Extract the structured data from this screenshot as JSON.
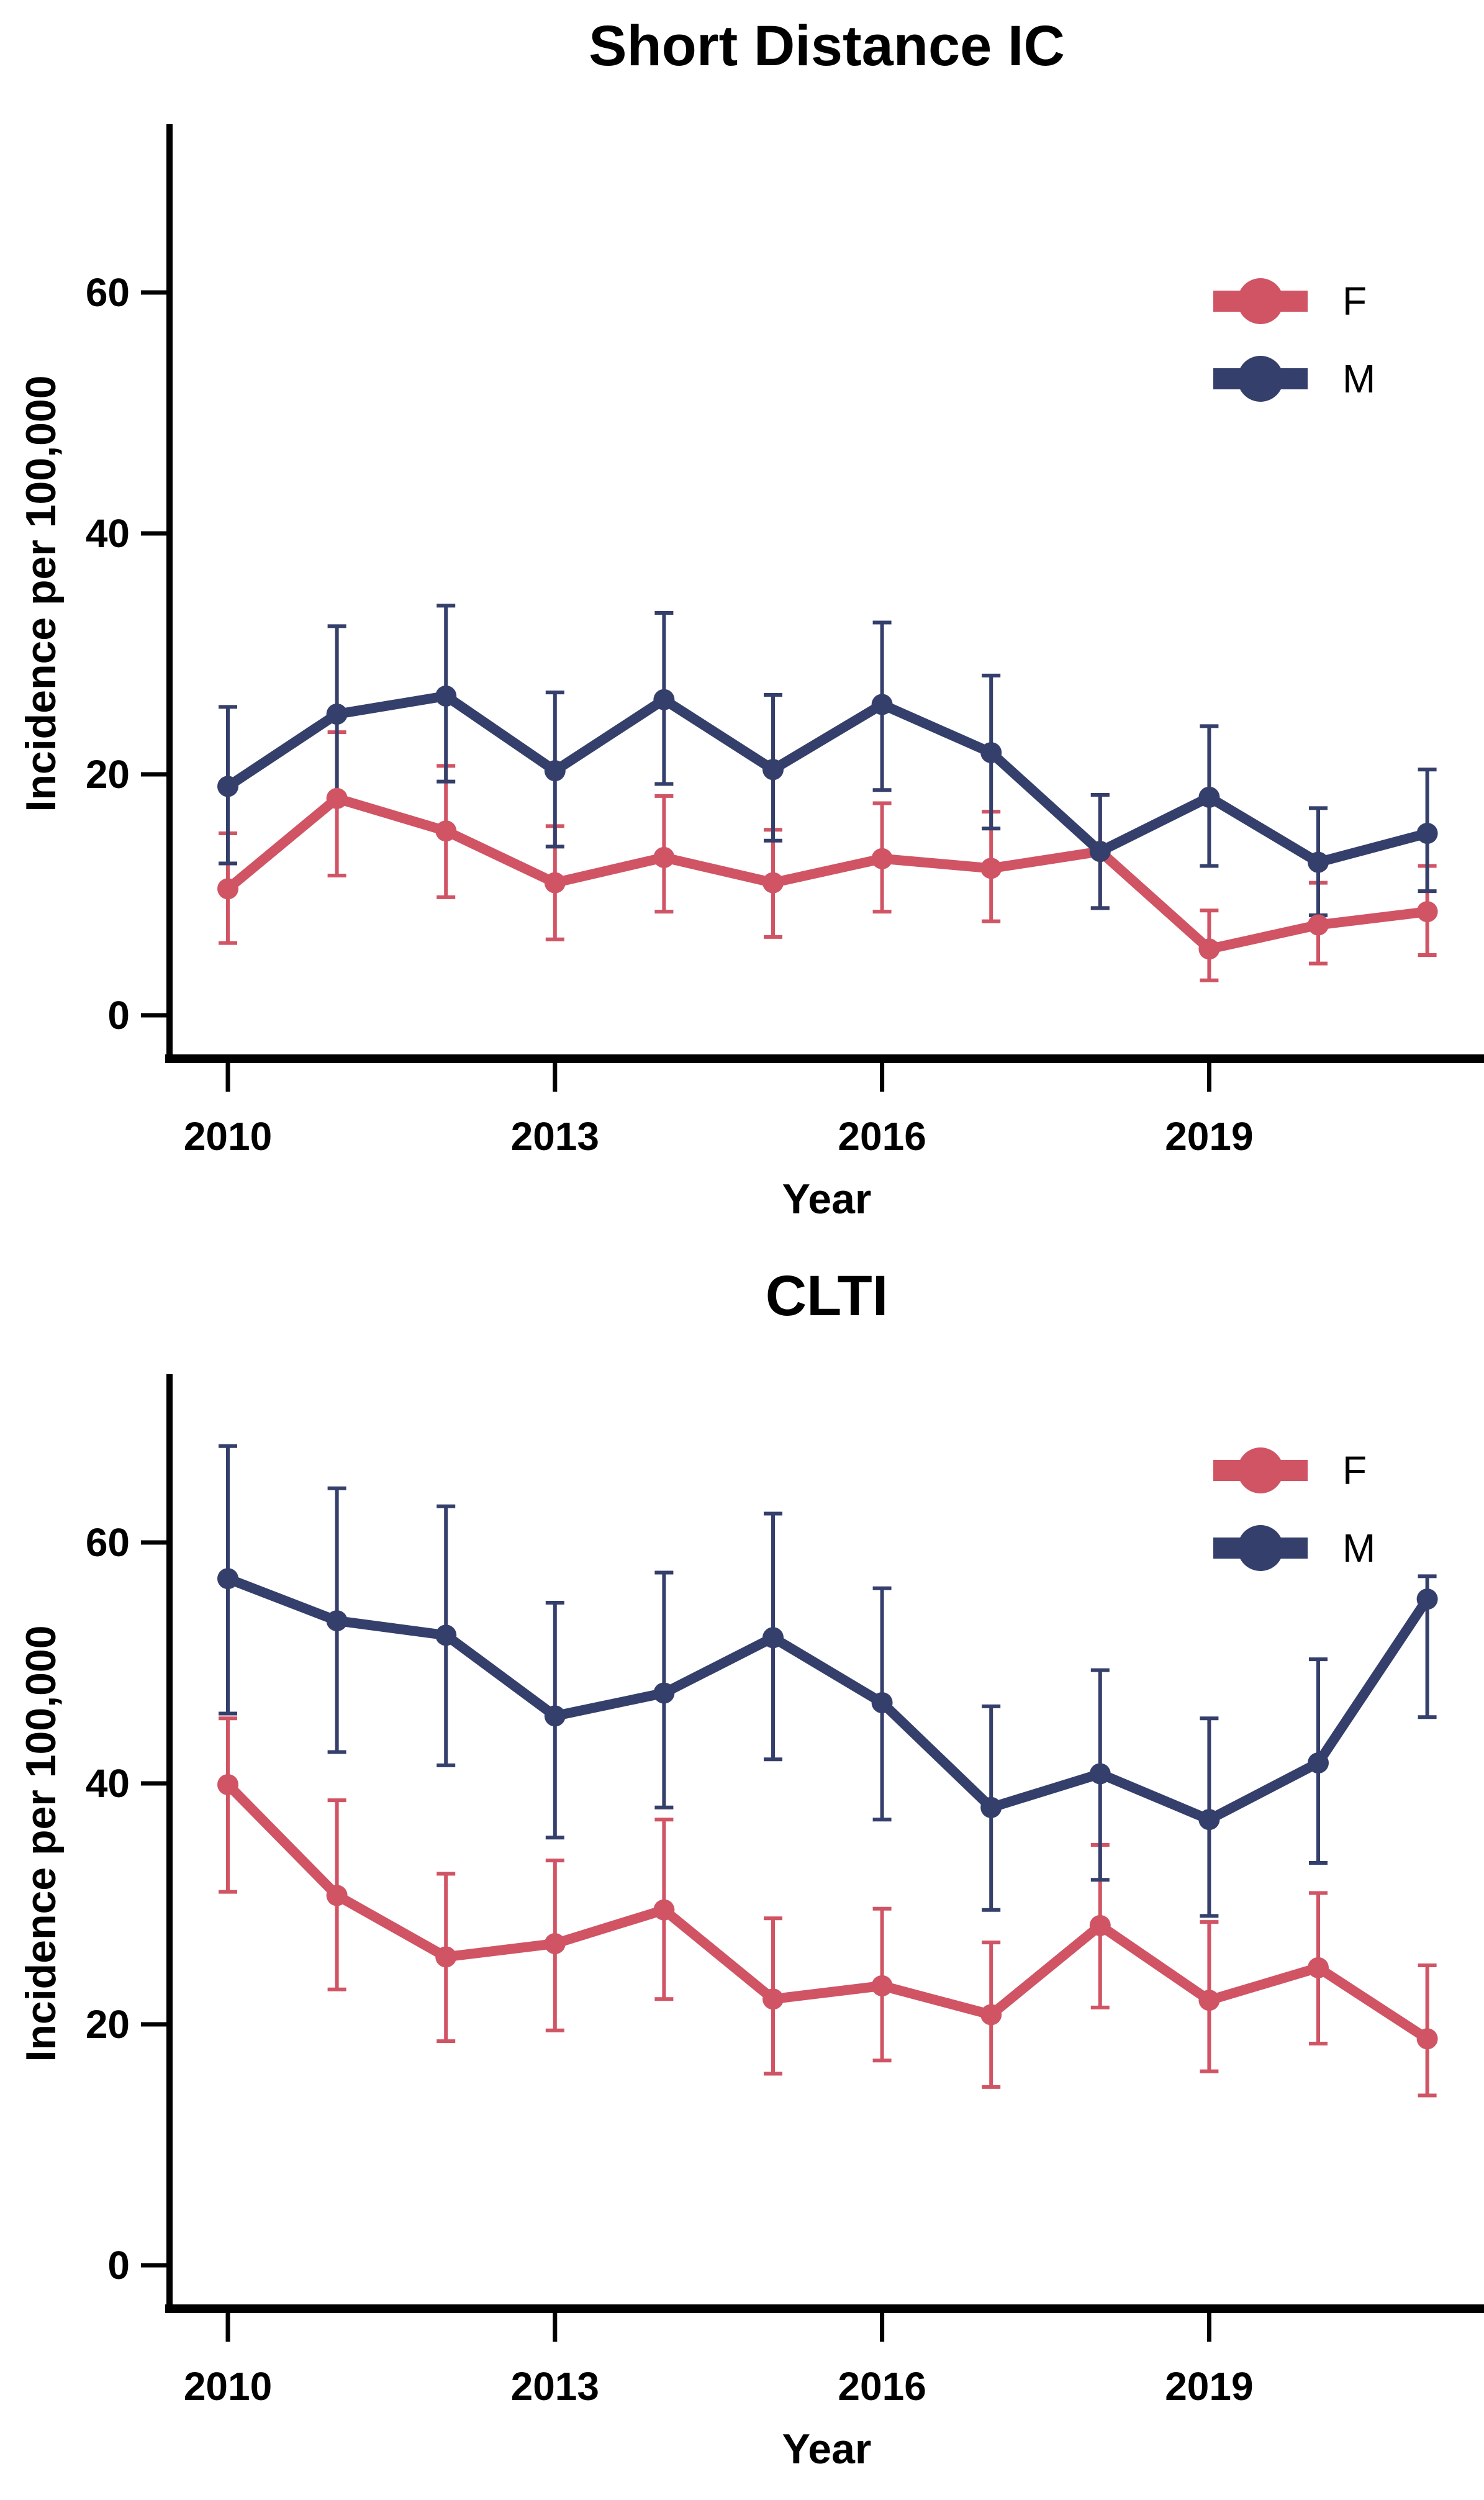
{
  "page": {
    "background": "#ffffff",
    "text_color": "#000000"
  },
  "chart_data": [
    {
      "type": "line",
      "title": "Short Distance IC",
      "xlabel": "Year",
      "ylabel": "Incidence per 100,000",
      "x": [
        2010,
        2011,
        2012,
        2013,
        2014,
        2015,
        2016,
        2017,
        2018,
        2019,
        2020,
        2021
      ],
      "x_ticks": [
        2010,
        2013,
        2016,
        2019
      ],
      "y_ticks": [
        0,
        20,
        40,
        60
      ],
      "xlim": [
        2009.45,
        2021.55
      ],
      "ylim": [
        -3.5,
        74
      ],
      "grid": false,
      "error_bars": true,
      "legend_position": "top-right",
      "series": [
        {
          "name": "F",
          "color": "#d05464",
          "values": [
            10.5,
            18.0,
            15.3,
            11.0,
            13.1,
            11.0,
            13.0,
            12.2,
            13.6,
            5.5,
            7.5,
            8.6
          ],
          "ci_low": [
            6.0,
            11.6,
            9.8,
            6.3,
            8.6,
            6.5,
            8.6,
            7.8,
            8.9,
            2.9,
            4.3,
            5.0
          ],
          "ci_high": [
            15.1,
            23.5,
            20.7,
            15.7,
            18.2,
            15.4,
            17.6,
            16.9,
            18.3,
            8.7,
            11.0,
            12.4
          ]
        },
        {
          "name": "M",
          "color": "#353f6b",
          "values": [
            19.0,
            25.0,
            26.5,
            20.3,
            26.2,
            20.4,
            25.8,
            21.8,
            13.6,
            18.1,
            12.7,
            15.1
          ],
          "ci_low": [
            12.6,
            17.9,
            19.4,
            14.0,
            19.2,
            14.5,
            18.7,
            15.5,
            8.9,
            12.4,
            8.3,
            10.3
          ],
          "ci_high": [
            25.6,
            32.3,
            34.0,
            26.8,
            33.4,
            26.6,
            32.6,
            28.2,
            18.3,
            24.0,
            17.2,
            20.4
          ]
        }
      ]
    },
    {
      "type": "line",
      "title": "CLTI",
      "xlabel": "Year",
      "ylabel": "Incidence per 100,000",
      "x": [
        2010,
        2011,
        2012,
        2013,
        2014,
        2015,
        2016,
        2017,
        2018,
        2019,
        2020,
        2021
      ],
      "x_ticks": [
        2010,
        2013,
        2016,
        2019
      ],
      "y_ticks": [
        0,
        20,
        40,
        60
      ],
      "xlim": [
        2009.45,
        2021.55
      ],
      "ylim": [
        -3.5,
        74
      ],
      "grid": false,
      "error_bars": true,
      "legend_position": "top-right",
      "series": [
        {
          "name": "F",
          "color": "#d05464",
          "values": [
            39.9,
            30.7,
            25.6,
            26.7,
            29.5,
            22.1,
            23.2,
            20.8,
            28.2,
            22.0,
            24.7,
            18.8
          ],
          "ci_low": [
            31.0,
            22.9,
            18.6,
            19.5,
            22.1,
            15.9,
            17.0,
            14.8,
            21.4,
            16.1,
            18.4,
            14.1
          ],
          "ci_high": [
            45.4,
            38.6,
            32.5,
            33.6,
            37.0,
            28.8,
            29.6,
            26.8,
            34.9,
            28.5,
            30.9,
            24.9
          ]
        },
        {
          "name": "M",
          "color": "#353f6b",
          "values": [
            57.0,
            53.5,
            52.3,
            45.6,
            47.5,
            52.1,
            46.7,
            38.0,
            40.8,
            37.0,
            41.7,
            55.3
          ],
          "ci_low": [
            45.8,
            42.6,
            41.5,
            35.5,
            38.0,
            42.0,
            37.0,
            29.5,
            32.0,
            29.0,
            33.4,
            45.5
          ],
          "ci_high": [
            68.0,
            64.5,
            63.0,
            55.0,
            57.5,
            62.4,
            56.2,
            46.4,
            49.4,
            45.4,
            50.3,
            57.2
          ]
        }
      ]
    }
  ]
}
